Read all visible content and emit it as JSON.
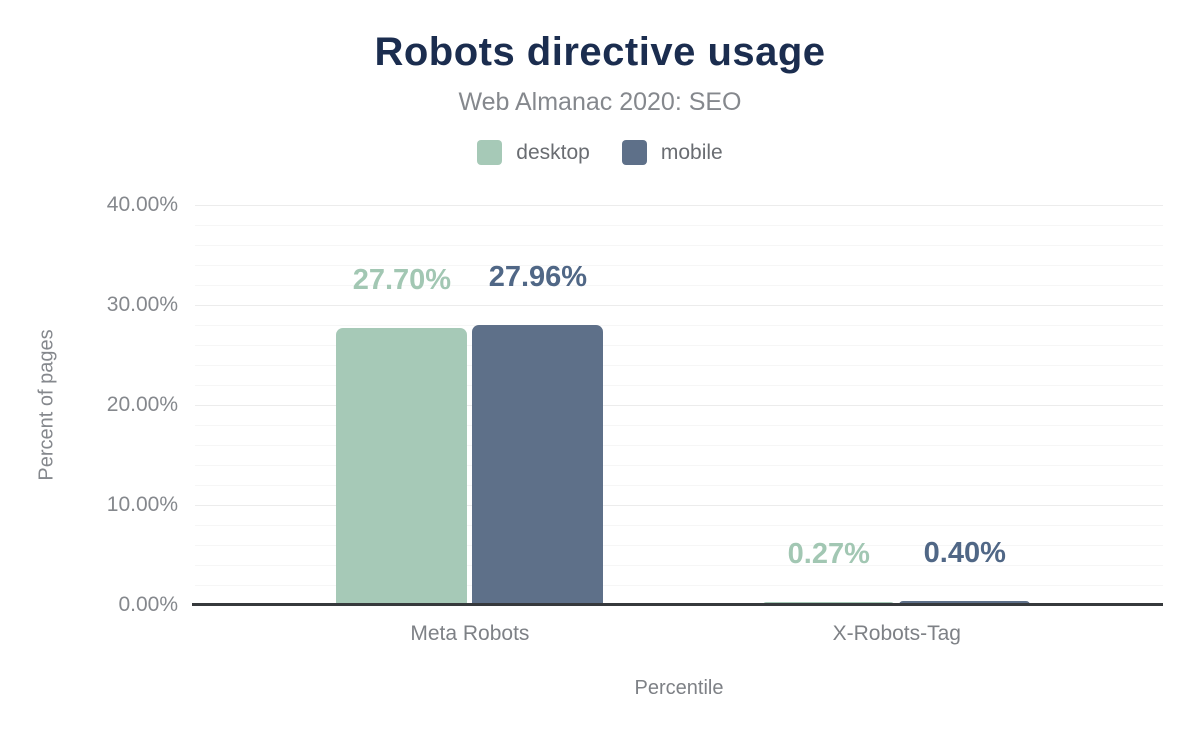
{
  "header": {
    "title": "Robots directive usage",
    "subtitle": "Web Almanac 2020: SEO"
  },
  "legend": [
    {
      "label": "desktop",
      "color": "#a6c9b7"
    },
    {
      "label": "mobile",
      "color": "#5e7089"
    }
  ],
  "chart_data": {
    "type": "bar",
    "title": "Robots directive usage",
    "subtitle": "Web Almanac 2020: SEO",
    "categories": [
      "Meta Robots",
      "X-Robots-Tag"
    ],
    "series": [
      {
        "name": "desktop",
        "color": "#a6c9b7",
        "label_color": "#a2c7b3",
        "values": [
          27.7,
          0.27
        ],
        "value_labels": [
          "27.70%",
          "0.27%"
        ]
      },
      {
        "name": "mobile",
        "color": "#5e7089",
        "label_color": "#506786",
        "values": [
          27.96,
          0.4
        ],
        "value_labels": [
          "27.96%",
          "0.40%"
        ]
      }
    ],
    "xlabel": "Percentile",
    "ylabel": "Percent of pages",
    "ylim": [
      0,
      40
    ],
    "yticks": [
      {
        "value": 0,
        "label": "0.00%"
      },
      {
        "value": 10,
        "label": "10.00%"
      },
      {
        "value": 20,
        "label": "20.00%"
      },
      {
        "value": 30,
        "label": "30.00%"
      },
      {
        "value": 40,
        "label": "40.00%"
      }
    ],
    "minor_grid_step": 2,
    "grid": true,
    "legend_position": "top"
  }
}
